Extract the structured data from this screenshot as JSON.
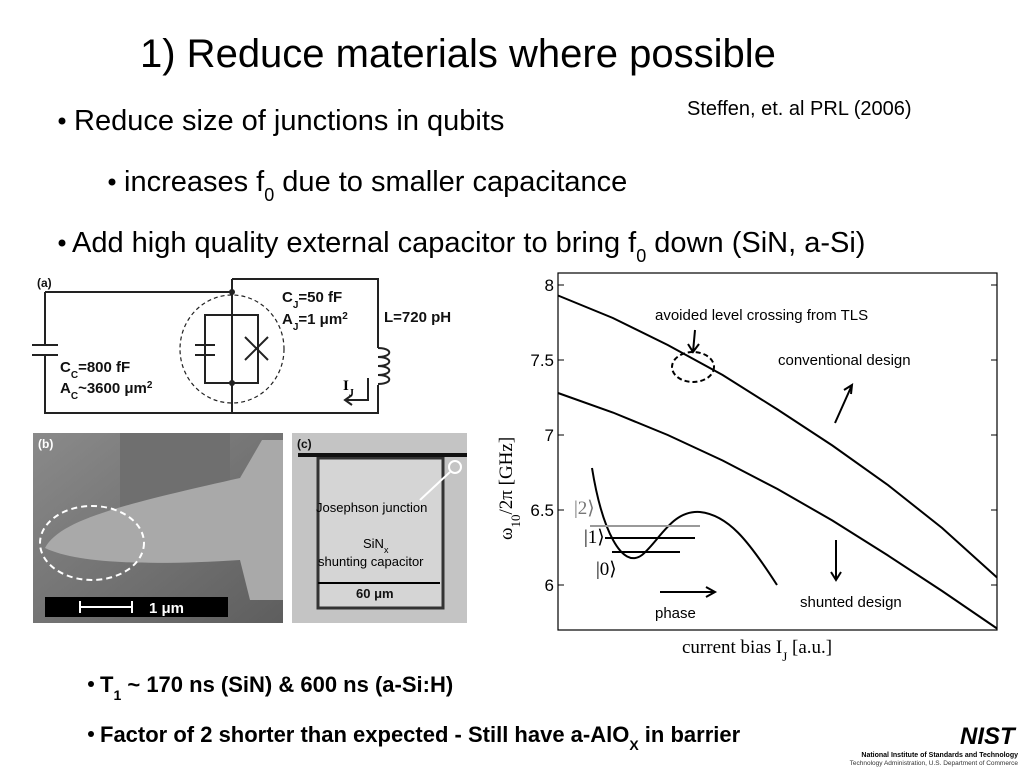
{
  "title": "1) Reduce materials where possible",
  "citation": "Steffen, et. al PRL (2006)",
  "bullets": [
    {
      "pre": "Reduce size of junctions in qubits"
    },
    {
      "pre": "increases f",
      "sub": "0",
      "post": " due to smaller capacitance"
    },
    {
      "pre": "Add high quality external capacitor to bring f",
      "sub": "0",
      "post": " down (SiN, a-Si)"
    },
    {
      "pre": "T",
      "sub": "1",
      "post": " ~ 170 ns (SiN) & 600 ns (a-Si:H)"
    },
    {
      "pre": "Factor of 2 shorter than expected - Still have a-AlO",
      "sub": "X",
      "post": " in barrier"
    }
  ],
  "circuit": {
    "label": "(a)",
    "cj": {
      "pre": "C",
      "sub": "J",
      "post": "=50 fF"
    },
    "aj": {
      "pre": "A",
      "sub": "J",
      "post": "=1 μm",
      "sup": "2"
    },
    "l": "L=720 pH",
    "cc": {
      "pre": "C",
      "sub": "C",
      "post": "=800 fF"
    },
    "ac": {
      "pre": "A",
      "sub": "C",
      "post": "~3600 μm",
      "sup": "2"
    },
    "ij": {
      "pre": "I",
      "sub": "J"
    }
  },
  "sem": {
    "label": "(b)",
    "scale": "1 μm"
  },
  "micrograph": {
    "label": "(c)",
    "junction": "Josephson junction",
    "sin": {
      "pre": "SiN",
      "sub": "x"
    },
    "cap": "shunting capacitor",
    "scale": "60 μm"
  },
  "chart_data": {
    "type": "line",
    "ylabel": {
      "pre": "ω",
      "sub": "10",
      "post": "/2π [GHz]"
    },
    "xlabel": {
      "pre": "current bias I",
      "sub": "J",
      "post": " [a.u.]"
    },
    "categories": [
      null,
      null,
      null,
      null,
      null,
      null,
      null,
      null,
      null
    ],
    "series": [
      {
        "color": "#000000",
        "values": [
          7.93,
          7.78,
          7.6,
          7.4,
          7.17,
          6.93,
          6.67,
          6.38,
          6.05
        ]
      },
      {
        "color": "#000000",
        "values": [
          7.28,
          7.15,
          7.0,
          6.83,
          6.64,
          6.43,
          6.2,
          5.96,
          5.71
        ]
      }
    ],
    "ylim": [
      5.7,
      8.08
    ],
    "yticks": [
      6,
      6.5,
      7,
      7.5,
      8
    ],
    "annotations": [
      "avoided level crossing from TLS",
      "conventional design",
      "shunted design",
      "phase",
      "|2⟩",
      "|1⟩",
      "|0⟩"
    ]
  },
  "footer": {
    "logo": "NIST",
    "line1": "National Institute of Standards and Technology",
    "line2": "Technology Administration, U.S. Department of Commerce"
  }
}
